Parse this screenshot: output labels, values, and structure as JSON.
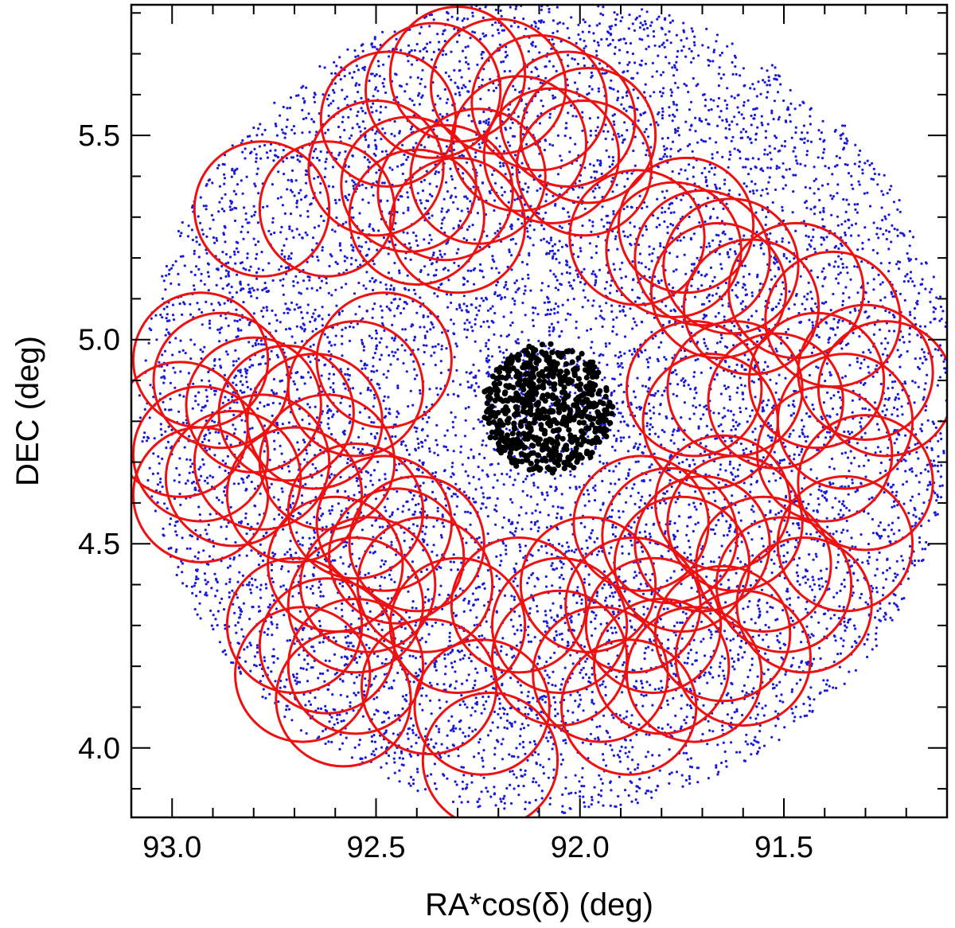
{
  "chart_data": {
    "type": "scatter",
    "title": "",
    "xlabel": "RA*cos(δ) (deg)",
    "ylabel": "DEC (deg)",
    "xlim": [
      93.1,
      91.1
    ],
    "ylim": [
      3.83,
      5.82
    ],
    "x_reversed": true,
    "x_ticks": [
      93.0,
      92.5,
      92.0,
      91.5
    ],
    "x_tick_labels": [
      "93.0",
      "92.5",
      "92.0",
      "91.5"
    ],
    "y_ticks": [
      4.0,
      4.5,
      5.0,
      5.5
    ],
    "y_tick_labels": [
      "4.0",
      "4.5",
      "5.0",
      "5.5"
    ],
    "grid": false,
    "series": [
      {
        "marker": "point",
        "color": "#1a1adb",
        "distribution": "dense uniform field within radius 1.0 deg of center",
        "center": [
          92.08,
          4.84
        ],
        "radius": 1.0,
        "approx_count": 9000
      },
      {
        "marker": "dot",
        "color": "#000000",
        "distribution": "central cluster members",
        "center": [
          92.08,
          4.83
        ],
        "radius": 0.16,
        "approx_count": 650
      },
      {
        "marker": "circle-outline",
        "color": "#ee1111",
        "radius": 0.165,
        "centers": [
          [
            92.47,
            5.54
          ],
          [
            92.36,
            5.61
          ],
          [
            92.3,
            5.65
          ],
          [
            92.2,
            5.62
          ],
          [
            92.1,
            5.58
          ],
          [
            92.03,
            5.54
          ],
          [
            91.98,
            5.5
          ],
          [
            92.5,
            5.42
          ],
          [
            92.42,
            5.38
          ],
          [
            92.33,
            5.36
          ],
          [
            92.25,
            5.4
          ],
          [
            92.15,
            5.48
          ],
          [
            92.07,
            5.45
          ],
          [
            91.99,
            5.42
          ],
          [
            92.4,
            5.3
          ],
          [
            92.3,
            5.28
          ],
          [
            92.62,
            5.32
          ],
          [
            92.78,
            5.32
          ],
          [
            91.86,
            5.25
          ],
          [
            91.77,
            5.22
          ],
          [
            91.7,
            5.2
          ],
          [
            91.63,
            5.18
          ],
          [
            91.74,
            5.28
          ],
          [
            91.66,
            5.12
          ],
          [
            91.58,
            5.08
          ],
          [
            91.47,
            5.12
          ],
          [
            91.38,
            5.05
          ],
          [
            91.3,
            4.92
          ],
          [
            91.25,
            4.88
          ],
          [
            91.42,
            4.9
          ],
          [
            91.52,
            4.85
          ],
          [
            91.62,
            4.88
          ],
          [
            91.72,
            4.88
          ],
          [
            91.68,
            4.8
          ],
          [
            91.35,
            4.8
          ],
          [
            91.4,
            4.72
          ],
          [
            91.3,
            4.65
          ],
          [
            92.93,
            4.95
          ],
          [
            92.88,
            4.9
          ],
          [
            92.8,
            4.84
          ],
          [
            92.72,
            4.82
          ],
          [
            92.65,
            4.8
          ],
          [
            92.55,
            4.88
          ],
          [
            92.48,
            4.95
          ],
          [
            92.98,
            4.78
          ],
          [
            92.93,
            4.72
          ],
          [
            92.85,
            4.66
          ],
          [
            92.78,
            4.7
          ],
          [
            92.7,
            4.62
          ],
          [
            92.62,
            4.7
          ],
          [
            92.55,
            4.58
          ],
          [
            92.93,
            4.62
          ],
          [
            92.6,
            4.45
          ],
          [
            92.52,
            4.4
          ],
          [
            92.45,
            4.47
          ],
          [
            92.38,
            4.4
          ],
          [
            92.55,
            4.35
          ],
          [
            92.3,
            4.3
          ],
          [
            92.4,
            4.5
          ],
          [
            92.48,
            4.55
          ],
          [
            92.7,
            4.3
          ],
          [
            92.62,
            4.25
          ],
          [
            92.55,
            4.2
          ],
          [
            92.68,
            4.18
          ],
          [
            92.58,
            4.12
          ],
          [
            92.37,
            4.15
          ],
          [
            92.24,
            4.1
          ],
          [
            92.22,
            3.97
          ],
          [
            92.15,
            4.35
          ],
          [
            92.05,
            4.3
          ],
          [
            91.95,
            4.18
          ],
          [
            91.88,
            4.1
          ],
          [
            91.8,
            4.2
          ],
          [
            91.72,
            4.18
          ],
          [
            91.65,
            4.28
          ],
          [
            91.6,
            4.22
          ],
          [
            91.98,
            4.4
          ],
          [
            91.87,
            4.35
          ],
          [
            91.78,
            4.52
          ],
          [
            91.7,
            4.5
          ],
          [
            91.62,
            4.55
          ],
          [
            91.55,
            4.45
          ],
          [
            91.5,
            4.4
          ],
          [
            91.45,
            4.35
          ],
          [
            91.35,
            4.5
          ],
          [
            91.65,
            4.6
          ],
          [
            91.75,
            4.45
          ],
          [
            91.82,
            4.3
          ],
          [
            92.05,
            4.22
          ],
          [
            91.85,
            4.55
          ]
        ]
      }
    ]
  }
}
